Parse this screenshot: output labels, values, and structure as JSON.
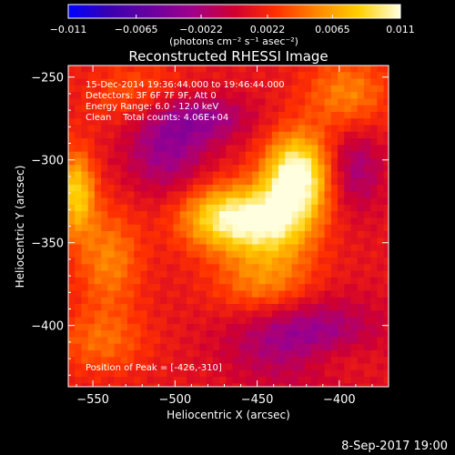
{
  "chart_data": {
    "type": "heatmap",
    "title": "Reconstructed RHESSI Image",
    "xlabel": "Heliocentric X (arcsec)",
    "ylabel": "Heliocentric Y (arcsec)",
    "xlim": [
      -565,
      -370
    ],
    "ylim": [
      -437,
      -243
    ],
    "xticks": [
      -550,
      -500,
      -450,
      -400
    ],
    "yticks": [
      -250,
      -300,
      -350,
      -400
    ],
    "xtick_labels": [
      "−550",
      "−500",
      "−450",
      "−400"
    ],
    "ytick_labels": [
      "−250",
      "−300",
      "−350",
      "−400"
    ],
    "colorbar": {
      "range": [
        -0.011,
        0.011
      ],
      "ticks": [
        -0.011,
        -0.0065,
        -0.0022,
        0.0022,
        0.0065,
        0.011
      ],
      "tick_labels": [
        "−0.011",
        "−0.0065",
        "−0.0022",
        "0.0022",
        "0.0065",
        "0.011"
      ],
      "unit_text": "(photons cm⁻² s⁻¹ asec⁻²)",
      "colors": [
        "#0000ff",
        "#3a00b0",
        "#6a00a0",
        "#a0008a",
        "#d00030",
        "#ff3000",
        "#ff8800",
        "#ffd000",
        "#ffffe0"
      ]
    },
    "annotations": [
      "15-Dec-2014 19:36:44.000 to 19:46:44.000",
      "Detectors: 3F 6F 7F 9F, Att 0",
      "Energy Range: 6.0 - 12.0 keV",
      "Clean    Total counts: 4.06E+04"
    ],
    "peak_label": "Position of Peak = [-426,-310]",
    "sources": [
      {
        "x": -426,
        "y": -310,
        "value": 0.011,
        "sx": 14,
        "sy": 18
      },
      {
        "x": -470,
        "y": -335,
        "value": 0.0085,
        "sx": 20,
        "sy": 14
      },
      {
        "x": -440,
        "y": -340,
        "value": 0.0065,
        "sx": 18,
        "sy": 16
      },
      {
        "x": -445,
        "y": -375,
        "value": 0.0045,
        "sx": 22,
        "sy": 14
      },
      {
        "x": -560,
        "y": -320,
        "value": 0.0075,
        "sx": 8,
        "sy": 18
      },
      {
        "x": -540,
        "y": -360,
        "value": 0.0045,
        "sx": 14,
        "sy": 22
      },
      {
        "x": -520,
        "y": -260,
        "value": 0.0035,
        "sx": 22,
        "sy": 14
      },
      {
        "x": -395,
        "y": -260,
        "value": 0.0045,
        "sx": 18,
        "sy": 16
      },
      {
        "x": -405,
        "y": -420,
        "value": 0.0035,
        "sx": 22,
        "sy": 10
      },
      {
        "x": -545,
        "y": -410,
        "value": 0.0035,
        "sx": 20,
        "sy": 14
      },
      {
        "x": -505,
        "y": -290,
        "value": -0.0045,
        "sx": 18,
        "sy": 22
      },
      {
        "x": -390,
        "y": -305,
        "value": -0.0035,
        "sx": 12,
        "sy": 18
      },
      {
        "x": -420,
        "y": -410,
        "value": -0.0055,
        "sx": 30,
        "sy": 18
      },
      {
        "x": -480,
        "y": -275,
        "value": -0.0035,
        "sx": 20,
        "sy": 10
      }
    ]
  },
  "footer": {
    "date": "8-Sep-2017 19:00"
  }
}
